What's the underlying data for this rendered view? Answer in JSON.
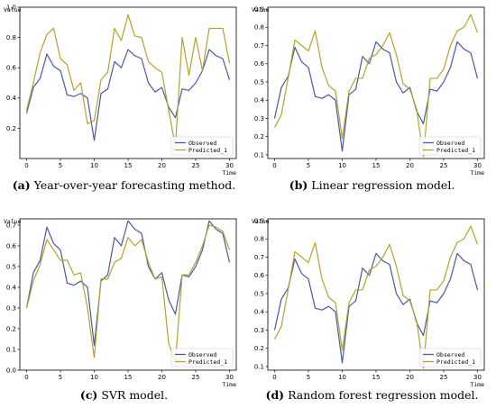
{
  "chart_data": [
    {
      "type": "line",
      "caption_label": "(a)",
      "caption_text": "Year-over-year forecasting method.",
      "ylabel": "Value",
      "xlabel": "Time",
      "xlim": [
        -1,
        31
      ],
      "ylim": [
        0,
        1.0
      ],
      "xticks": [
        0,
        5,
        10,
        15,
        20,
        25,
        30
      ],
      "yticks": [
        0.2,
        0.4,
        0.6,
        0.8,
        1.0
      ],
      "ytick_labels": [
        "0.2",
        "0.4",
        "0.6",
        "0.8",
        "1.0"
      ],
      "legend_position": "bottom-right",
      "series": [
        {
          "name": "Observed",
          "color": "#4a58a8",
          "x": [
            0,
            1,
            2,
            3,
            4,
            5,
            6,
            7,
            8,
            9,
            10,
            11,
            12,
            13,
            14,
            15,
            16,
            17,
            18,
            19,
            20,
            21,
            22,
            23,
            24,
            25,
            26,
            27,
            28,
            29,
            30
          ],
          "values": [
            0.3,
            0.47,
            0.53,
            0.69,
            0.61,
            0.58,
            0.42,
            0.41,
            0.43,
            0.4,
            0.12,
            0.43,
            0.46,
            0.64,
            0.6,
            0.72,
            0.68,
            0.66,
            0.5,
            0.44,
            0.47,
            0.34,
            0.27,
            0.46,
            0.45,
            0.5,
            0.58,
            0.72,
            0.68,
            0.66,
            0.52
          ]
        },
        {
          "name": "Predicted_1",
          "color": "#b5a22b",
          "x": [
            0,
            1,
            2,
            3,
            4,
            5,
            6,
            7,
            8,
            9,
            10,
            11,
            12,
            13,
            14,
            15,
            16,
            17,
            18,
            19,
            20,
            21,
            22,
            23,
            24,
            25,
            26,
            27,
            28,
            29,
            30
          ],
          "values": [
            0.32,
            0.5,
            0.7,
            0.82,
            0.86,
            0.66,
            0.62,
            0.45,
            0.5,
            0.23,
            0.25,
            0.52,
            0.57,
            0.86,
            0.78,
            0.95,
            0.81,
            0.8,
            0.64,
            0.6,
            0.57,
            0.32,
            0.08,
            0.8,
            0.55,
            0.8,
            0.58,
            0.86,
            0.86,
            0.86,
            0.63
          ]
        }
      ]
    },
    {
      "type": "line",
      "caption_label": "(b)",
      "caption_text": "Linear regression model.",
      "ylabel": "Value",
      "xlabel": "Time",
      "xlim": [
        -1,
        31
      ],
      "ylim": [
        0.08,
        0.91
      ],
      "xticks": [
        0,
        5,
        10,
        15,
        20,
        25,
        30
      ],
      "yticks": [
        0.1,
        0.2,
        0.3,
        0.4,
        0.5,
        0.6,
        0.7,
        0.8,
        0.9
      ],
      "ytick_labels": [
        "0.1",
        "0.2",
        "0.3",
        "0.4",
        "0.5",
        "0.6",
        "0.7",
        "0.8",
        "0.9"
      ],
      "legend_position": "bottom-right",
      "series": [
        {
          "name": "Observed",
          "color": "#4a58a8",
          "x": [
            0,
            1,
            2,
            3,
            4,
            5,
            6,
            7,
            8,
            9,
            10,
            11,
            12,
            13,
            14,
            15,
            16,
            17,
            18,
            19,
            20,
            21,
            22,
            23,
            24,
            25,
            26,
            27,
            28,
            29,
            30
          ],
          "values": [
            0.3,
            0.47,
            0.53,
            0.69,
            0.61,
            0.58,
            0.42,
            0.41,
            0.43,
            0.4,
            0.12,
            0.43,
            0.46,
            0.64,
            0.6,
            0.72,
            0.68,
            0.66,
            0.5,
            0.44,
            0.47,
            0.34,
            0.27,
            0.46,
            0.45,
            0.5,
            0.58,
            0.72,
            0.68,
            0.66,
            0.52
          ]
        },
        {
          "name": "Predicted_1",
          "color": "#b5a22b",
          "x": [
            0,
            1,
            2,
            3,
            4,
            5,
            6,
            7,
            8,
            9,
            10,
            11,
            12,
            13,
            14,
            15,
            16,
            17,
            18,
            19,
            20,
            21,
            22,
            23,
            24,
            25,
            26,
            27,
            28,
            29,
            30
          ],
          "values": [
            0.25,
            0.32,
            0.52,
            0.73,
            0.7,
            0.67,
            0.78,
            0.58,
            0.48,
            0.45,
            0.19,
            0.45,
            0.52,
            0.52,
            0.63,
            0.65,
            0.7,
            0.77,
            0.65,
            0.49,
            0.46,
            0.35,
            0.09,
            0.52,
            0.52,
            0.57,
            0.7,
            0.78,
            0.8,
            0.87,
            0.77
          ]
        }
      ]
    },
    {
      "type": "line",
      "caption_label": "(c)",
      "caption_text": "SVR model.",
      "ylabel": "Value",
      "xlabel": "Time",
      "xlim": [
        -1,
        31
      ],
      "ylim": [
        0,
        0.73
      ],
      "xticks": [
        0,
        5,
        10,
        15,
        20,
        25,
        30
      ],
      "yticks": [
        0.0,
        0.1,
        0.2,
        0.3,
        0.4,
        0.5,
        0.6,
        0.7
      ],
      "ytick_labels": [
        "0.0",
        "0.1",
        "0.2",
        "0.3",
        "0.4",
        "0.5",
        "0.6",
        "0.7"
      ],
      "legend_position": "bottom-right",
      "series": [
        {
          "name": "Observed",
          "color": "#4a58a8",
          "x": [
            0,
            1,
            2,
            3,
            4,
            5,
            6,
            7,
            8,
            9,
            10,
            11,
            12,
            13,
            14,
            15,
            16,
            17,
            18,
            19,
            20,
            21,
            22,
            23,
            24,
            25,
            26,
            27,
            28,
            29,
            30
          ],
          "values": [
            0.3,
            0.47,
            0.53,
            0.69,
            0.61,
            0.58,
            0.42,
            0.41,
            0.43,
            0.4,
            0.12,
            0.43,
            0.46,
            0.64,
            0.6,
            0.72,
            0.68,
            0.66,
            0.5,
            0.44,
            0.47,
            0.34,
            0.27,
            0.46,
            0.45,
            0.5,
            0.58,
            0.72,
            0.68,
            0.66,
            0.52
          ]
        },
        {
          "name": "Predicted_1",
          "color": "#b5a22b",
          "x": [
            0,
            1,
            2,
            3,
            4,
            5,
            6,
            7,
            8,
            9,
            10,
            11,
            12,
            13,
            14,
            15,
            16,
            17,
            18,
            19,
            20,
            21,
            22,
            23,
            24,
            25,
            26,
            27,
            28,
            29,
            30
          ],
          "values": [
            0.3,
            0.43,
            0.51,
            0.63,
            0.58,
            0.53,
            0.53,
            0.46,
            0.47,
            0.3,
            0.06,
            0.44,
            0.44,
            0.52,
            0.54,
            0.64,
            0.6,
            0.63,
            0.52,
            0.44,
            0.45,
            0.13,
            0.04,
            0.46,
            0.46,
            0.52,
            0.6,
            0.7,
            0.69,
            0.67,
            0.58
          ]
        }
      ]
    },
    {
      "type": "line",
      "caption_label": "(d)",
      "caption_text": "Random forest regression model.",
      "ylabel": "Value",
      "xlabel": "Time",
      "xlim": [
        -1,
        31
      ],
      "ylim": [
        0.08,
        0.91
      ],
      "xticks": [
        0,
        5,
        10,
        15,
        20,
        25,
        30
      ],
      "yticks": [
        0.1,
        0.2,
        0.3,
        0.4,
        0.5,
        0.6,
        0.7,
        0.8,
        0.9
      ],
      "ytick_labels": [
        "0.1",
        "0.2",
        "0.3",
        "0.4",
        "0.5",
        "0.6",
        "0.7",
        "0.8",
        "0.9"
      ],
      "legend_position": "bottom-right",
      "series": [
        {
          "name": "Observed",
          "color": "#4a58a8",
          "x": [
            0,
            1,
            2,
            3,
            4,
            5,
            6,
            7,
            8,
            9,
            10,
            11,
            12,
            13,
            14,
            15,
            16,
            17,
            18,
            19,
            20,
            21,
            22,
            23,
            24,
            25,
            26,
            27,
            28,
            29,
            30
          ],
          "values": [
            0.3,
            0.47,
            0.53,
            0.69,
            0.61,
            0.58,
            0.42,
            0.41,
            0.43,
            0.4,
            0.12,
            0.43,
            0.46,
            0.64,
            0.6,
            0.72,
            0.68,
            0.66,
            0.5,
            0.44,
            0.47,
            0.34,
            0.27,
            0.46,
            0.45,
            0.5,
            0.58,
            0.72,
            0.68,
            0.66,
            0.52
          ]
        },
        {
          "name": "Predicted_1",
          "color": "#b5a22b",
          "x": [
            0,
            1,
            2,
            3,
            4,
            5,
            6,
            7,
            8,
            9,
            10,
            11,
            12,
            13,
            14,
            15,
            16,
            17,
            18,
            19,
            20,
            21,
            22,
            23,
            24,
            25,
            26,
            27,
            28,
            29,
            30
          ],
          "values": [
            0.25,
            0.32,
            0.52,
            0.73,
            0.7,
            0.67,
            0.78,
            0.58,
            0.48,
            0.45,
            0.19,
            0.45,
            0.52,
            0.52,
            0.63,
            0.65,
            0.7,
            0.77,
            0.65,
            0.49,
            0.46,
            0.35,
            0.09,
            0.52,
            0.52,
            0.57,
            0.7,
            0.78,
            0.8,
            0.87,
            0.77
          ]
        }
      ]
    }
  ]
}
